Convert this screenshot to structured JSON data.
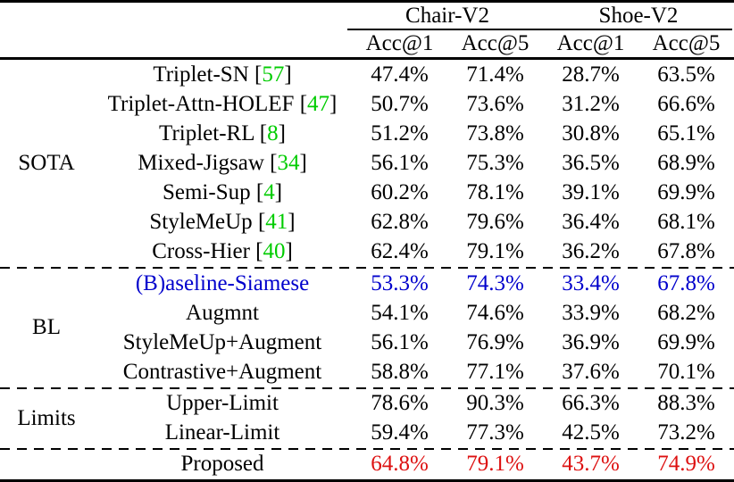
{
  "colors": {
    "citation-green": "#00CC00",
    "baseline-blue": "#0000CC",
    "proposed-red": "#DD1111",
    "rule-black": "#000000"
  },
  "header": {
    "datasets": [
      {
        "label": "Chair-V2"
      },
      {
        "label": "Shoe-V2"
      }
    ],
    "metrics": [
      "Acc@1",
      "Acc@5",
      "Acc@1",
      "Acc@5"
    ]
  },
  "groups": [
    {
      "label": "SOTA",
      "rows": [
        {
          "method": "Triplet-SN",
          "cite_open": " [",
          "cite": "57",
          "cite_close": "]",
          "values": [
            "47.4%",
            "71.4%",
            "28.7%",
            "63.5%"
          ]
        },
        {
          "method": "Triplet-Attn-HOLEF",
          "cite_open": " [",
          "cite": "47",
          "cite_close": "]",
          "values": [
            "50.7%",
            "73.6%",
            "31.2%",
            "66.6%"
          ]
        },
        {
          "method": "Triplet-RL",
          "cite_open": " [",
          "cite": "8",
          "cite_close": "]",
          "values": [
            "51.2%",
            "73.8%",
            "30.8%",
            "65.1%"
          ]
        },
        {
          "method": "Mixed-Jigsaw",
          "cite_open": " [",
          "cite": "34",
          "cite_close": "]",
          "values": [
            "56.1%",
            "75.3%",
            "36.5%",
            "68.9%"
          ]
        },
        {
          "method": "Semi-Sup",
          "cite_open": " [",
          "cite": "4",
          "cite_close": "]",
          "values": [
            "60.2%",
            "78.1%",
            "39.1%",
            "69.9%"
          ]
        },
        {
          "method": "StyleMeUp",
          "cite_open": " [",
          "cite": "41",
          "cite_close": "]",
          "values": [
            "62.8%",
            "79.6%",
            "36.4%",
            "68.1%"
          ]
        },
        {
          "method": "Cross-Hier",
          "cite_open": " [",
          "cite": "40",
          "cite_close": "]",
          "values": [
            "62.4%",
            "79.1%",
            "36.2%",
            "67.8%"
          ]
        }
      ]
    },
    {
      "label": "BL",
      "rows": [
        {
          "method": "(B)aseline-Siamese",
          "values": [
            "53.3%",
            "74.3%",
            "33.4%",
            "67.8%"
          ]
        },
        {
          "method": "Augmnt",
          "values": [
            "54.1%",
            "74.6%",
            "33.9%",
            "68.2%"
          ]
        },
        {
          "method": "StyleMeUp+Augment",
          "values": [
            "56.1%",
            "76.9%",
            "36.9%",
            "69.9%"
          ]
        },
        {
          "method": "Contrastive+Augment",
          "values": [
            "58.8%",
            "77.1%",
            "37.6%",
            "70.1%"
          ]
        }
      ]
    },
    {
      "label": "Limits",
      "rows": [
        {
          "method": "Upper-Limit",
          "values": [
            "78.6%",
            "90.3%",
            "66.3%",
            "88.3%"
          ]
        },
        {
          "method": "Linear-Limit",
          "values": [
            "59.4%",
            "77.3%",
            "42.5%",
            "73.2%"
          ]
        }
      ]
    },
    {
      "label": "",
      "rows": [
        {
          "method": "Proposed",
          "values": [
            "64.8%",
            "79.1%",
            "43.7%",
            "74.9%"
          ]
        }
      ]
    }
  ]
}
